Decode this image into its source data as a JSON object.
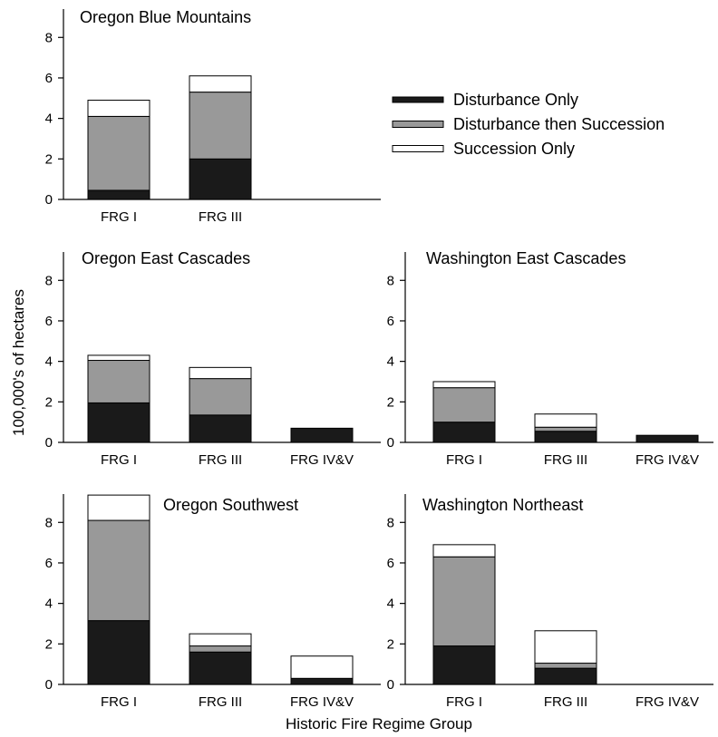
{
  "chart_data": {
    "type": "bar",
    "stacked": true,
    "ylabel": "100,000's of hectares",
    "xlabel": "Historic Fire Regime Group",
    "ylim": [
      0,
      9.4
    ],
    "yticks": [
      0,
      2,
      4,
      6,
      8
    ],
    "colors": {
      "Disturbance Only": "#1a1a1a",
      "Disturbance then Succession": "#999999",
      "Succession Only": "#ffffff"
    },
    "legend": {
      "placement": "right of top panel",
      "entries": [
        "Disturbance Only",
        "Disturbance then Succession",
        "Succession Only"
      ]
    },
    "panels": [
      {
        "title": "Oregon Blue Mountains",
        "categories": [
          "FRG I",
          "FRG III"
        ],
        "series": [
          {
            "name": "Disturbance Only",
            "values": [
              0.45,
              2.0
            ]
          },
          {
            "name": "Disturbance then Succession",
            "values": [
              3.65,
              3.3
            ]
          },
          {
            "name": "Succession Only",
            "values": [
              0.8,
              0.8
            ]
          }
        ]
      },
      {
        "title": "Oregon East Cascades",
        "categories": [
          "FRG I",
          "FRG III",
          "FRG IV&V"
        ],
        "series": [
          {
            "name": "Disturbance Only",
            "values": [
              1.95,
              1.35,
              0.7
            ]
          },
          {
            "name": "Disturbance then Succession",
            "values": [
              2.1,
              1.8,
              0.0
            ]
          },
          {
            "name": "Succession Only",
            "values": [
              0.25,
              0.55,
              0.0
            ]
          }
        ]
      },
      {
        "title": "Washington East Cascades",
        "categories": [
          "FRG I",
          "FRG III",
          "FRG IV&V"
        ],
        "series": [
          {
            "name": "Disturbance Only",
            "values": [
              1.0,
              0.55,
              0.35
            ]
          },
          {
            "name": "Disturbance then Succession",
            "values": [
              1.7,
              0.2,
              0.0
            ]
          },
          {
            "name": "Succession Only",
            "values": [
              0.3,
              0.65,
              0.0
            ]
          }
        ]
      },
      {
        "title": "Oregon Southwest",
        "categories": [
          "FRG I",
          "FRG III",
          "FRG IV&V"
        ],
        "series": [
          {
            "name": "Disturbance Only",
            "values": [
              3.15,
              1.6,
              0.3
            ]
          },
          {
            "name": "Disturbance then Succession",
            "values": [
              4.95,
              0.3,
              0.0
            ]
          },
          {
            "name": "Succession Only",
            "values": [
              1.25,
              0.6,
              1.1
            ]
          }
        ]
      },
      {
        "title": "Washington Northeast",
        "categories": [
          "FRG I",
          "FRG III",
          "FRG IV&V"
        ],
        "series": [
          {
            "name": "Disturbance Only",
            "values": [
              1.9,
              0.8,
              0.0
            ]
          },
          {
            "name": "Disturbance then Succession",
            "values": [
              4.4,
              0.25,
              0.0
            ]
          },
          {
            "name": "Succession Only",
            "values": [
              0.6,
              1.6,
              0.0
            ]
          }
        ]
      }
    ]
  }
}
